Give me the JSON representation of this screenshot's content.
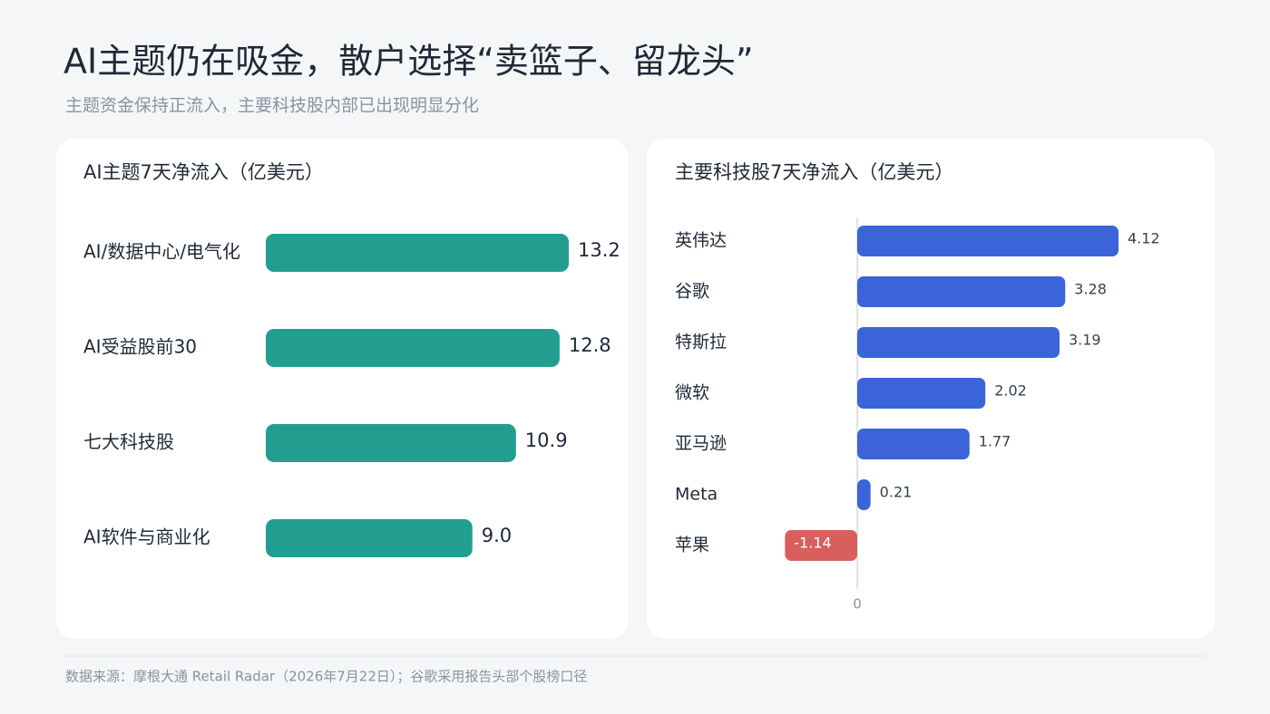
{
  "title": "AI主题仍在吸金，散户选择“卖篮子、留龙头”",
  "subtitle": "主题资金保持正流入，主要科技股内部已出现明显分化",
  "source": "数据来源：摩根大通 Retail Radar（2026年7月22日）；谷歌采用报告头部个股榜口径",
  "chart_data": [
    {
      "type": "hbar",
      "title": "AI主题7天净流入（亿美元）",
      "categories": [
        "AI/数据中心/电气化",
        "AI受益股前30",
        "七大科技股",
        "AI软件与商业化"
      ],
      "values": [
        13.2,
        12.8,
        10.9,
        9.0
      ],
      "value_labels": [
        "13.2",
        "12.8",
        "10.9",
        "9.0"
      ],
      "color": "#229e90"
    },
    {
      "type": "hbar",
      "title": "主要科技股7天净流入（亿美元）",
      "categories": [
        "英伟达",
        "谷歌",
        "特斯拉",
        "微软",
        "亚马逊",
        "Meta",
        "苹果"
      ],
      "values": [
        4.12,
        3.28,
        3.19,
        2.02,
        1.77,
        0.21,
        -1.14
      ],
      "color": "#3a64d8",
      "negative_color": "#d95f5f",
      "xticks": [
        0
      ]
    }
  ]
}
